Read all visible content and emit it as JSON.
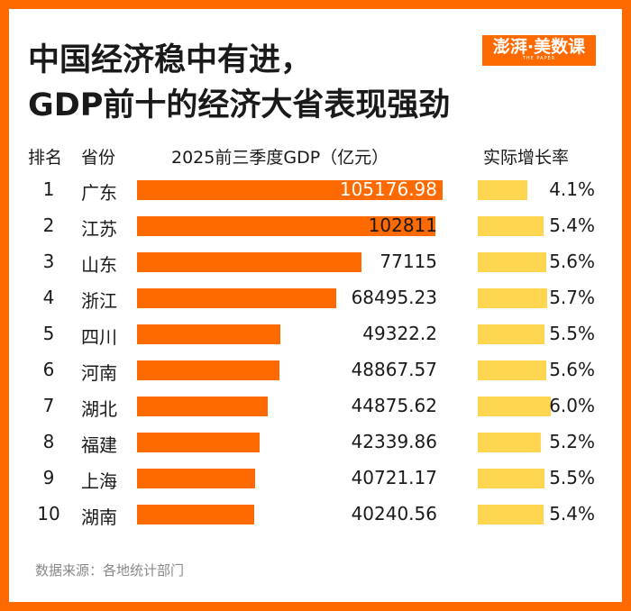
{
  "title_line1": "中国经济稳中有进，",
  "title_line2": "GDP前十的经济大省表现强劲",
  "logo": {
    "main": "澎湃·美数课",
    "sub": "THE PAPER"
  },
  "headers": {
    "rank": "排名",
    "province": "省份",
    "gdp": "2025前三季度GDP（亿元）",
    "growth": "实际增长率"
  },
  "source": "数据来源：各地统计部门",
  "colors": {
    "border": "#ff6a00",
    "gdp_bar": "#ff6a00",
    "growth_bar": "#ffd44f"
  },
  "chart_data": {
    "type": "bar",
    "orientation": "horizontal",
    "categories": [
      "广东",
      "江苏",
      "山东",
      "浙江",
      "四川",
      "河南",
      "湖北",
      "福建",
      "上海",
      "湖南"
    ],
    "ranks": [
      "1",
      "2",
      "3",
      "4",
      "5",
      "6",
      "7",
      "8",
      "9",
      "10"
    ],
    "series": [
      {
        "name": "2025前三季度GDP（亿元）",
        "values": [
          105176.98,
          102811,
          77115,
          68495.23,
          49322.2,
          48867.57,
          44875.62,
          42339.86,
          40721.17,
          40240.56
        ],
        "labels": [
          "105176.98",
          "102811",
          "77115",
          "68495.23",
          "49322.2",
          "48867.57",
          "44875.62",
          "42339.86",
          "40721.17",
          "40240.56"
        ]
      },
      {
        "name": "实际增长率",
        "values": [
          4.1,
          5.4,
          5.6,
          5.7,
          5.5,
          5.6,
          6.0,
          5.2,
          5.5,
          5.4
        ],
        "labels": [
          "4.1%",
          "5.4%",
          "5.6%",
          "5.7%",
          "5.5%",
          "5.6%",
          "6.0%",
          "5.2%",
          "5.5%",
          "5.4%"
        ]
      }
    ]
  }
}
